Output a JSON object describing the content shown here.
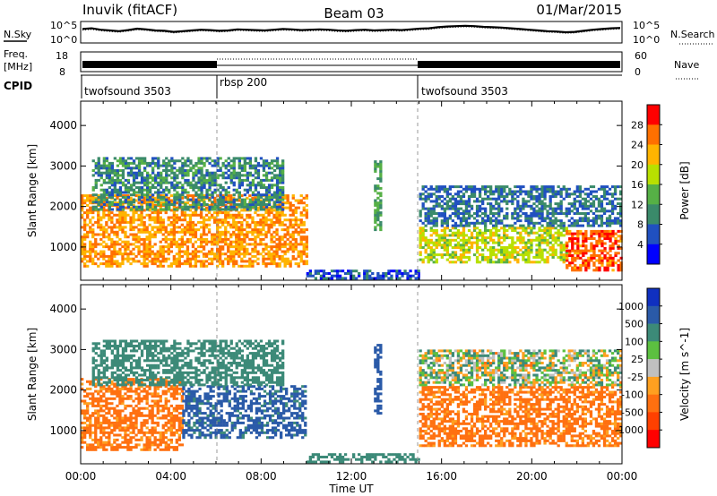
{
  "header": {
    "station": "Inuvik (fitACF)",
    "beam": "Beam 03",
    "date": "01/Mar/2015"
  },
  "panels": {
    "nsky": {
      "left_label": "N.Sky",
      "right_label": "N.Search",
      "ticks_left": [
        "10^5",
        "10^0"
      ],
      "ticks_right": [
        "10^5",
        "10^0"
      ],
      "trace": [
        3.4,
        3.6,
        3.2,
        3.0,
        2.8,
        3.1,
        3.5,
        3.3,
        3.0,
        2.9,
        2.6,
        2.8,
        3.0,
        3.2,
        3.1,
        2.9,
        3.0,
        3.3,
        3.2,
        3.1,
        3.0,
        3.2,
        3.4,
        3.3,
        3.1,
        3.2,
        3.3,
        3.2,
        3.0,
        2.9,
        3.1,
        3.2,
        3.0,
        3.1,
        3.2,
        3.1,
        3.3,
        3.5,
        3.6,
        3.9,
        4.1,
        4.2,
        4.3,
        4.2,
        4.0,
        3.9,
        3.8,
        3.6,
        3.4,
        3.2,
        3.0,
        2.8,
        2.7,
        2.5,
        2.6,
        2.9,
        3.2,
        3.4,
        3.6,
        3.7
      ]
    },
    "freq": {
      "left_label": "Freq.",
      "left_unit": "[MHz]",
      "right_label": "Nave",
      "ticks_left": [
        "18",
        "8"
      ],
      "ticks_right": [
        "60",
        "0"
      ]
    },
    "cpid": {
      "label": "CPID",
      "segments": [
        {
          "name": "twofsound 3503",
          "start_hour": 0,
          "end_hour": 6
        },
        {
          "name": "rbsp 200",
          "start_hour": 6,
          "end_hour": 15
        },
        {
          "name": "twofsound 3503",
          "start_hour": 15,
          "end_hour": 24
        }
      ]
    }
  },
  "x_axis": {
    "label": "Time UT",
    "tick_labels": [
      "00:00",
      "04:00",
      "08:00",
      "12:00",
      "16:00",
      "20:00",
      "00:00"
    ]
  },
  "colors": {
    "power_scale": [
      "#0000ff",
      "#2050c0",
      "#3a8a6a",
      "#56b046",
      "#b8e000",
      "#ffb400",
      "#ff7000",
      "#ff0000"
    ],
    "velocity_scale": [
      "#1030c0",
      "#2a5aa8",
      "#3c8a78",
      "#5cc040",
      "#c0c0c0",
      "#ffa020",
      "#ff7010",
      "#ff4000",
      "#ff0000"
    ]
  },
  "chart_data": [
    {
      "type": "heatmap",
      "title": "",
      "xlabel": "",
      "ylabel": "Slant Range [km]",
      "xlim": [
        0,
        24
      ],
      "ylim": [
        180,
        4600
      ],
      "y_tick_labels": [
        "1000",
        "2000",
        "3000",
        "4000"
      ],
      "colorbar": {
        "label": "Power [dB]",
        "tick_labels": [
          "28",
          "24",
          "20",
          "16",
          "12",
          "8",
          "4"
        ],
        "range": [
          0,
          32
        ]
      },
      "echo_regions": [
        {
          "start_hour": 0.0,
          "end_hour": 10.0,
          "range_min_km": 500,
          "range_max_km": 2300,
          "value": 24
        },
        {
          "start_hour": 0.5,
          "end_hour": 9.0,
          "range_min_km": 1900,
          "range_max_km": 3200,
          "value": 10
        },
        {
          "start_hour": 13.0,
          "end_hour": 13.3,
          "range_min_km": 1400,
          "range_max_km": 3100,
          "value": 12
        },
        {
          "start_hour": 15.0,
          "end_hour": 21.5,
          "range_min_km": 600,
          "range_max_km": 1500,
          "value": 18
        },
        {
          "start_hour": 21.5,
          "end_hour": 24.0,
          "range_min_km": 400,
          "range_max_km": 1400,
          "value": 27
        },
        {
          "start_hour": 15.0,
          "end_hour": 24.0,
          "range_min_km": 1500,
          "range_max_km": 2500,
          "value": 8
        },
        {
          "start_hour": 10.0,
          "end_hour": 15.0,
          "range_min_km": 200,
          "range_max_km": 400,
          "value": 6
        }
      ]
    },
    {
      "type": "heatmap",
      "title": "",
      "xlabel": "Time UT",
      "ylabel": "Slant Range [km]",
      "xlim": [
        0,
        24
      ],
      "ylim": [
        180,
        4600
      ],
      "y_tick_labels": [
        "1000",
        "2000",
        "3000",
        "4000"
      ],
      "colorbar": {
        "label": "Velocity [m s^-1]",
        "tick_labels": [
          "1000",
          "500",
          "100",
          "25",
          "-25",
          "-100",
          "-500",
          "-1000"
        ],
        "range": [
          -1000,
          1000
        ]
      },
      "echo_regions": [
        {
          "start_hour": 0.0,
          "end_hour": 4.5,
          "range_min_km": 500,
          "range_max_km": 2300,
          "value": -200
        },
        {
          "start_hour": 4.5,
          "end_hour": 10.0,
          "range_min_km": 800,
          "range_max_km": 2100,
          "value": 600
        },
        {
          "start_hour": 0.5,
          "end_hour": 9.0,
          "range_min_km": 2100,
          "range_max_km": 3200,
          "value": 300
        },
        {
          "start_hour": 13.0,
          "end_hour": 13.3,
          "range_min_km": 1400,
          "range_max_km": 3100,
          "value": 800
        },
        {
          "start_hour": 15.0,
          "end_hour": 24.0,
          "range_min_km": 600,
          "range_max_km": 2100,
          "value": -200
        },
        {
          "start_hour": 15.0,
          "end_hour": 24.0,
          "range_min_km": 2100,
          "range_max_km": 3000,
          "value": 40
        },
        {
          "start_hour": 10.0,
          "end_hour": 15.0,
          "range_min_km": 200,
          "range_max_km": 400,
          "value": 300
        }
      ]
    }
  ]
}
